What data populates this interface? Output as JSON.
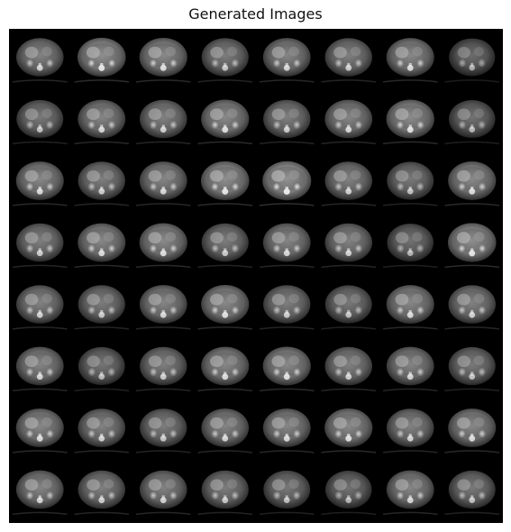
{
  "title": "Generated Images",
  "grid": {
    "rows": 8,
    "cols": 8,
    "background_color": "#000000",
    "tiles": [
      [
        0.72,
        0.85,
        0.8,
        0.68,
        0.75,
        0.7,
        0.78,
        0.55
      ],
      [
        0.65,
        0.75,
        0.72,
        0.8,
        0.7,
        0.75,
        0.82,
        0.6
      ],
      [
        0.78,
        0.7,
        0.75,
        0.85,
        0.9,
        0.72,
        0.65,
        0.8
      ],
      [
        0.7,
        0.78,
        0.8,
        0.68,
        0.75,
        0.72,
        0.6,
        0.85
      ],
      [
        0.72,
        0.68,
        0.75,
        0.8,
        0.7,
        0.65,
        0.78,
        0.72
      ],
      [
        0.75,
        0.62,
        0.7,
        0.78,
        0.8,
        0.72,
        0.74,
        0.66
      ],
      [
        0.78,
        0.72,
        0.68,
        0.74,
        0.76,
        0.8,
        0.72,
        0.78
      ],
      [
        0.74,
        0.7,
        0.72,
        0.68,
        0.64,
        0.6,
        0.75,
        0.65
      ]
    ]
  }
}
